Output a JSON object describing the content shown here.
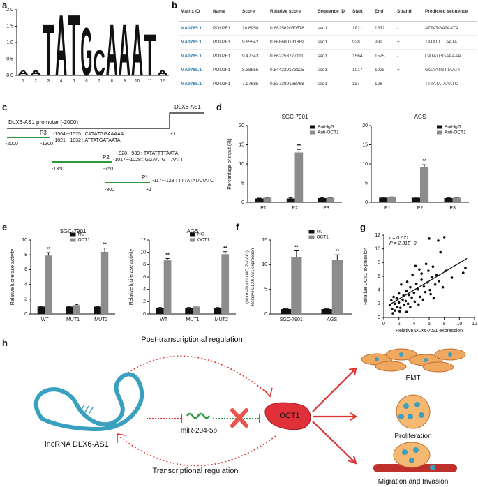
{
  "panel_labels": [
    "a",
    "b",
    "c",
    "d",
    "e",
    "f",
    "g",
    "h"
  ],
  "table": {
    "header": [
      "Matrix ID",
      "Name",
      "Score",
      "Relative score",
      "Sequence ID",
      "Start",
      "End",
      "Strand",
      "Predicted sequence"
    ],
    "rows": [
      [
        "MA0785.1",
        "POU2F1",
        "10.6958",
        "0.882562050578",
        "seq1",
        "1821",
        "1832",
        "-",
        "ATTATGATAATA"
      ],
      [
        "MA0785.1",
        "POU2F1",
        "9.85542",
        "0.868600181889",
        "seq1",
        "928",
        "939",
        "+",
        "TATATTTTAATA"
      ],
      [
        "MA0785.1",
        "POU2F1",
        "9.47343",
        "0.862253777111",
        "seq1",
        "1564",
        "1575",
        "-",
        "CATATGGAAAAA"
      ],
      [
        "MA0785.1",
        "POU2F1",
        "8.38855",
        "0.844229173125",
        "seq1",
        "1017",
        "1028",
        "+",
        "GGAATGTTAATT"
      ],
      [
        "MA0785.1",
        "POU2F1",
        "7.97685",
        "0.837389168768",
        "seq1",
        "117",
        "128",
        "-",
        "TTTATATAAATC"
      ]
    ]
  },
  "promoter_diagram": {
    "promoter_label": "DLX6-AS1 promoter (-2000)",
    "gene_label": "DLX6-AS1",
    "tss_label": "+1",
    "fragments": [
      {
        "name": "P3",
        "start": "-2000",
        "end": "-1300",
        "sites": [
          "-1564~-1575 : CATATGGAAAAA",
          "-1821~-1832 : ATTATGATAATA"
        ]
      },
      {
        "name": "P2",
        "start": "-1350",
        "end": "-750",
        "sites": [
          "-928~-939 : TATATTTTAATA",
          "-1017~-1028 : GGAATGTTAATT"
        ]
      },
      {
        "name": "P1",
        "start": "-800",
        "end": "+1",
        "sites": [
          "-117~-128 : TTTATATAAATC"
        ]
      }
    ]
  },
  "mechanism": {
    "top_label": "Post-transcriptional regulation",
    "bottom_label": "Transcriptional regulation",
    "lncrna": "lncRNA DLX6-AS1",
    "mirna": "miR-204-5p",
    "tf": "OCT1",
    "outcomes": [
      "EMT",
      "Proliferation",
      "Migration and Invasion"
    ]
  },
  "chart_data": [
    {
      "type": "logo",
      "categories": [
        "1",
        "2",
        "3",
        "4",
        "5",
        "6",
        "7",
        "8",
        "9",
        "10",
        "11",
        "12"
      ],
      "letters": [
        "A",
        "A",
        "T",
        "A",
        "T",
        "G",
        "C",
        "A",
        "A",
        "A",
        "T",
        "A"
      ],
      "values": [
        0.15,
        0.15,
        1.6,
        1.9,
        1.9,
        1.5,
        0.8,
        1.6,
        1.6,
        1.6,
        1.3,
        0.15
      ],
      "colors": {
        "A": "#2e9a3e",
        "C": "#2d6db5",
        "G": "#f4a92a",
        "T": "#d42a2a"
      },
      "ylim": [
        0,
        2
      ],
      "yticks": [
        {
          "value": 0,
          "label": "0.0"
        },
        {
          "value": 0.5,
          "label": "0.5"
        },
        {
          "value": 1,
          "label": "1.0"
        },
        {
          "value": 1.5,
          "label": "1.5"
        },
        {
          "value": 2,
          "label": "2.0"
        }
      ]
    },
    {
      "type": "bar",
      "title": "SGC-7901",
      "y_label": "Percentage of input (%)",
      "legend": "upper right",
      "categories": [
        "P1",
        "P2",
        "P3"
      ],
      "series": [
        {
          "name": "Anti-IgG",
          "color": "#111111",
          "values": [
            1.0,
            1.0,
            1.1
          ],
          "errors": [
            0.1,
            0.15,
            0.1
          ]
        },
        {
          "name": "Anti-OCT1",
          "color": "#8c8c8c",
          "values": [
            1.2,
            13.0,
            1.2
          ],
          "errors": [
            0.1,
            0.8,
            0.1
          ],
          "significance": [
            null,
            "**",
            null
          ]
        }
      ],
      "ylim": [
        0,
        20
      ],
      "yticks": [
        0,
        5,
        10,
        15,
        20
      ]
    },
    {
      "type": "bar",
      "title": "AGS",
      "legend": "upper right",
      "categories": [
        "P1",
        "P2",
        "P3"
      ],
      "series": [
        {
          "name": "Anti-IgG",
          "color": "#111111",
          "values": [
            1.2,
            1.2,
            1.1
          ],
          "errors": [
            0.1,
            0.15,
            0.05
          ]
        },
        {
          "name": "Anti-OCT1",
          "color": "#8c8c8c",
          "values": [
            1.3,
            9.1,
            1.2
          ],
          "errors": [
            0.1,
            0.7,
            0.1
          ],
          "significance": [
            null,
            "**",
            null
          ]
        }
      ],
      "ylim": [
        0,
        20
      ],
      "yticks": [
        0,
        5,
        10,
        15,
        20
      ]
    },
    {
      "type": "bar",
      "title": "SGC-7901",
      "y_label": "Relative luciferase activity",
      "legend": "upper center",
      "categories": [
        "WT",
        "MUT1",
        "MUT2"
      ],
      "series": [
        {
          "name": "NC",
          "color": "#111111",
          "values": [
            1,
            1,
            1
          ],
          "errors": [
            0.05,
            0.05,
            0.05
          ]
        },
        {
          "name": "OCT1",
          "color": "#8c8c8c",
          "values": [
            7.9,
            1.2,
            8.4
          ],
          "errors": [
            0.4,
            0.1,
            0.5
          ],
          "significance": [
            "**",
            null,
            "**"
          ]
        }
      ],
      "ylim": [
        0,
        10
      ],
      "yticks": [
        0,
        2,
        4,
        6,
        8,
        10
      ]
    },
    {
      "type": "bar",
      "title": "AGS",
      "y_label": "Relative luciferase activity",
      "legend": "upper center",
      "categories": [
        "WT",
        "MUT1",
        "MUT2"
      ],
      "series": [
        {
          "name": "NC",
          "color": "#111111",
          "values": [
            1,
            1,
            1
          ],
          "errors": [
            0.05,
            0.05,
            0.05
          ]
        },
        {
          "name": "OCT1",
          "color": "#8c8c8c",
          "values": [
            8.7,
            1.2,
            9.7
          ],
          "errors": [
            0.3,
            0.1,
            0.4
          ],
          "significance": [
            "**",
            null,
            "**"
          ]
        }
      ],
      "ylim": [
        0,
        12
      ],
      "yticks": [
        0,
        2,
        4,
        6,
        8,
        10,
        12
      ]
    },
    {
      "type": "bar",
      "y_label": [
        "Relative DLX6-AS1 expression",
        "(Normalized to NC, 2−ΔΔCt)"
      ],
      "legend": "upper center",
      "categories": [
        "SGC-7901",
        "AGS"
      ],
      "series": [
        {
          "name": "NC",
          "color": "#111111",
          "values": [
            1,
            1
          ],
          "errors": [
            0.05,
            0.05
          ]
        },
        {
          "name": "OCT1",
          "color": "#8c8c8c",
          "values": [
            11.6,
            11.0
          ],
          "errors": [
            1.2,
            1.0
          ],
          "significance": [
            "**",
            "**"
          ]
        }
      ],
      "ylim": [
        0,
        15
      ],
      "yticks": [
        0,
        5,
        10,
        15
      ]
    },
    {
      "type": "scatter",
      "x_label": "Relative DLX6-AS1 expression",
      "y_label": "Relative OCT1 expression",
      "annotations": [
        "r = 0.671",
        "P = 2.31E−8"
      ],
      "series": [
        {
          "color": "#111111",
          "x": [
            0.8,
            1,
            1.1,
            1.3,
            1.5,
            1.5,
            1.7,
            1.8,
            2,
            2,
            2.2,
            2.3,
            2.5,
            2.6,
            2.7,
            2.9,
            3,
            3.1,
            3.2,
            3.3,
            3.5,
            3.5,
            3.7,
            3.8,
            4,
            4.1,
            4.2,
            4.3,
            4.5,
            4.6,
            4.7,
            4.8,
            5,
            5,
            5.2,
            5.3,
            5.5,
            5.6,
            5.8,
            5.9,
            6,
            6.1,
            6.2,
            6.4,
            6.5,
            6.6,
            6.8,
            7,
            7.2,
            7.3,
            7.5,
            7.8,
            8,
            8.2,
            9,
            10.5,
            10.8,
            1.2,
            2.1,
            3
          ],
          "y": [
            1.8,
            2.5,
            1.2,
            3,
            2,
            1,
            2.8,
            1.5,
            3.5,
            2.2,
            1.4,
            4.8,
            2.6,
            3.2,
            1.8,
            2.4,
            3.9,
            5.2,
            2,
            3.3,
            4.4,
            1.5,
            2.9,
            6.2,
            3.6,
            2.3,
            7.5,
            4.9,
            4.1,
            1.9,
            7,
            3,
            5.5,
            6.4,
            2.6,
            4.5,
            3.7,
            7.8,
            5.1,
            6.8,
            11.5,
            4,
            3.4,
            5.9,
            7.4,
            2.8,
            4.8,
            6.2,
            11.2,
            5.3,
            9.5,
            4.4,
            11.7,
            6.8,
            5.8,
            6.5,
            7.2,
            0.6,
            0.9,
            0.8
          ]
        }
      ],
      "trend_line": {
        "x": [
          0.8,
          11
        ],
        "y": [
          1.9,
          8.6
        ]
      },
      "xlim": [
        0,
        12
      ],
      "xticks": [
        0,
        2,
        4,
        6,
        8,
        10,
        12
      ],
      "ylim": [
        0,
        12
      ],
      "yticks": [
        0,
        2,
        4,
        6,
        8,
        10,
        12
      ]
    }
  ]
}
